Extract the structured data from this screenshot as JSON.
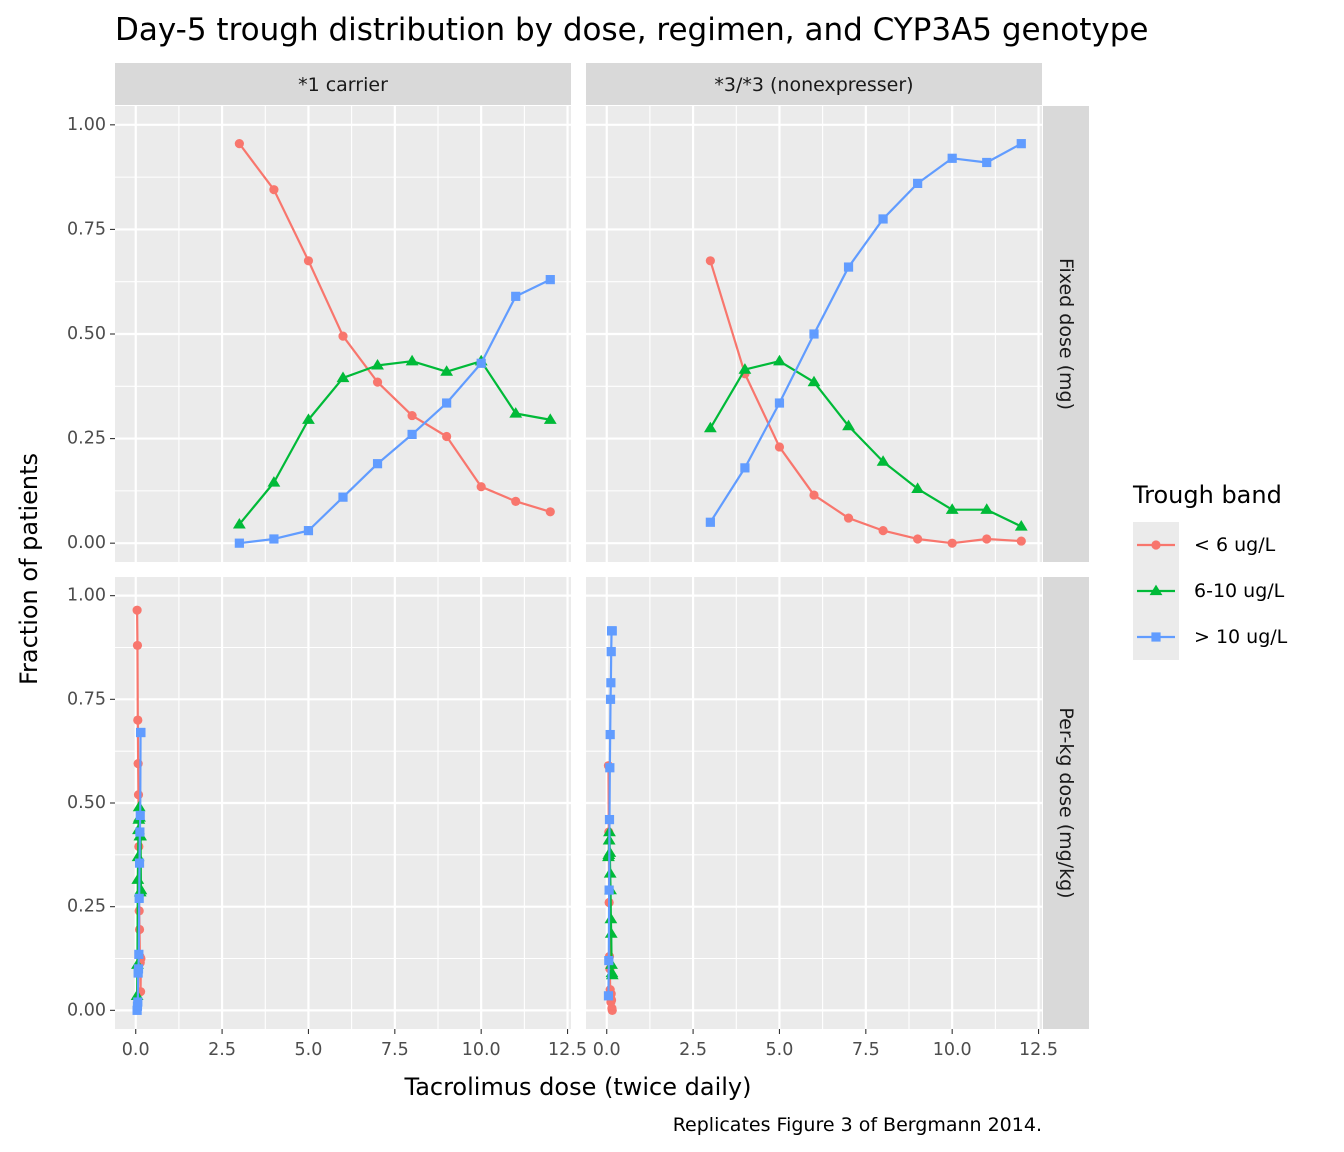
{
  "chart_data": {
    "type": "line",
    "title": "Day-5 trough distribution by dose, regimen, and CYP3A5 genotype",
    "xlabel": "Tacrolimus dose (twice daily)",
    "ylabel": "Fraction of patients",
    "caption": "Replicates Figure 3 of Bergmann 2014.",
    "xlim": [
      -0.6,
      12.6
    ],
    "ylim": [
      -0.045,
      1.045
    ],
    "x_ticks": [
      0,
      2.5,
      5,
      7.5,
      10,
      12.5
    ],
    "x_tick_labels": [
      "0.0",
      "2.5",
      "5.0",
      "7.5",
      "10.0",
      "12.5"
    ],
    "y_ticks": [
      0,
      0.25,
      0.5,
      0.75,
      1
    ],
    "y_tick_labels": [
      "0.00",
      "0.25",
      "0.50",
      "0.75",
      "1.00"
    ],
    "grid": true,
    "facet_columns": [
      "*1 carrier",
      "*3/*3 (nonexpresser)"
    ],
    "facet_rows": [
      "Fixed dose (mg)",
      "Per-kg dose (mg/kg)"
    ],
    "legend": {
      "title": "Trough band",
      "position": "right",
      "entries": [
        {
          "label": "< 6 ug/L",
          "color": "#F8766D",
          "shape": "circle"
        },
        {
          "label": "6-10 ug/L",
          "color": "#00BA38",
          "shape": "triangle"
        },
        {
          "label": "> 10 ug/L",
          "color": "#619CFF",
          "shape": "square"
        }
      ]
    },
    "panels": [
      {
        "row": 0,
        "col": 0,
        "series": [
          {
            "band": 0,
            "x": [
              3,
              4,
              5,
              6,
              7,
              8,
              9,
              10,
              11,
              12
            ],
            "y": [
              0.955,
              0.845,
              0.675,
              0.495,
              0.385,
              0.305,
              0.255,
              0.135,
              0.1,
              0.075
            ]
          },
          {
            "band": 1,
            "x": [
              3,
              4,
              5,
              6,
              7,
              8,
              9,
              10,
              11,
              12
            ],
            "y": [
              0.045,
              0.145,
              0.295,
              0.395,
              0.425,
              0.435,
              0.41,
              0.435,
              0.31,
              0.295
            ]
          },
          {
            "band": 2,
            "x": [
              3,
              4,
              5,
              6,
              7,
              8,
              9,
              10,
              11,
              12
            ],
            "y": [
              0.0,
              0.01,
              0.03,
              0.11,
              0.19,
              0.26,
              0.335,
              0.43,
              0.59,
              0.63
            ]
          }
        ]
      },
      {
        "row": 0,
        "col": 1,
        "series": [
          {
            "band": 0,
            "x": [
              3,
              4,
              5,
              6,
              7,
              8,
              9,
              10,
              11,
              12
            ],
            "y": [
              0.675,
              0.405,
              0.23,
              0.115,
              0.06,
              0.03,
              0.01,
              0.0,
              0.01,
              0.005
            ]
          },
          {
            "band": 1,
            "x": [
              3,
              4,
              5,
              6,
              7,
              8,
              9,
              10,
              11,
              12
            ],
            "y": [
              0.275,
              0.415,
              0.435,
              0.385,
              0.28,
              0.195,
              0.13,
              0.08,
              0.08,
              0.04
            ]
          },
          {
            "band": 2,
            "x": [
              3,
              4,
              5,
              6,
              7,
              8,
              9,
              10,
              11,
              12
            ],
            "y": [
              0.05,
              0.18,
              0.335,
              0.5,
              0.66,
              0.775,
              0.86,
              0.92,
              0.91,
              0.955
            ]
          }
        ]
      },
      {
        "row": 1,
        "col": 0,
        "series": [
          {
            "band": 0,
            "x": [
              0.04,
              0.05,
              0.06,
              0.07,
              0.08,
              0.09,
              0.1,
              0.11,
              0.12,
              0.13,
              0.14,
              0.15
            ],
            "y": [
              0.965,
              0.88,
              0.7,
              0.595,
              0.52,
              0.395,
              0.24,
              0.195,
              0.13,
              0.115,
              0.045,
              0.125
            ]
          },
          {
            "band": 1,
            "x": [
              0.04,
              0.05,
              0.06,
              0.07,
              0.08,
              0.09,
              0.1,
              0.11,
              0.12,
              0.13,
              0.14,
              0.15
            ],
            "y": [
              0.035,
              0.11,
              0.315,
              0.37,
              0.435,
              0.46,
              0.49,
              0.465,
              0.42,
              0.285,
              0.42,
              0.29
            ]
          },
          {
            "band": 2,
            "x": [
              0.04,
              0.05,
              0.06,
              0.07,
              0.08,
              0.09,
              0.1,
              0.11,
              0.12,
              0.13,
              0.14,
              0.15
            ],
            "y": [
              0.0,
              0.01,
              0.02,
              0.09,
              0.1,
              0.135,
              0.27,
              0.355,
              0.43,
              0.47,
              0.67,
              0.67
            ]
          }
        ]
      },
      {
        "row": 1,
        "col": 1,
        "series": [
          {
            "band": 0,
            "x": [
              0.05,
              0.06,
              0.07,
              0.08,
              0.09,
              0.1,
              0.11,
              0.12,
              0.13,
              0.14,
              0.15,
              0.16
            ],
            "y": [
              0.59,
              0.43,
              0.26,
              0.13,
              0.1,
              0.05,
              0.03,
              0.02,
              0.04,
              0.025,
              0.005,
              0.0
            ]
          },
          {
            "band": 1,
            "x": [
              0.05,
              0.06,
              0.07,
              0.08,
              0.09,
              0.1,
              0.11,
              0.12,
              0.13,
              0.14,
              0.15,
              0.16
            ],
            "y": [
              0.37,
              0.375,
              0.41,
              0.43,
              0.38,
              0.33,
              0.29,
              0.22,
              0.185,
              0.11,
              0.09,
              0.085
            ]
          },
          {
            "band": 2,
            "x": [
              0.05,
              0.06,
              0.07,
              0.08,
              0.09,
              0.1,
              0.11,
              0.12,
              0.13,
              0.14,
              0.15,
              0.16
            ],
            "y": [
              0.035,
              0.12,
              0.29,
              0.46,
              0.585,
              0.665,
              0.75,
              0.79,
              0.865,
              0.915,
              0.915,
              0.915
            ]
          }
        ]
      }
    ]
  }
}
